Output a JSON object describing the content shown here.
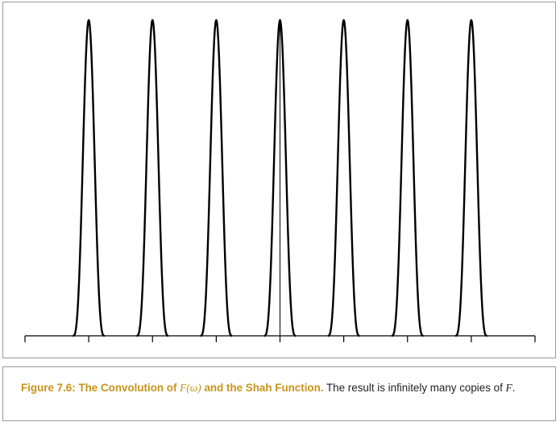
{
  "chart_data": {
    "type": "line",
    "title": "",
    "xlabel": "",
    "ylabel": "",
    "grid": false,
    "axis_ticks": [
      -4,
      -3,
      -2,
      -1,
      0,
      1,
      2,
      3,
      4
    ],
    "x_range": [
      -4,
      4
    ],
    "y_range": [
      0,
      1
    ],
    "series": [
      {
        "values_description_centers": [
          -3,
          -2,
          -1,
          0,
          1,
          2,
          3
        ],
        "peak": 1.0
      }
    ],
    "copy_centers": [
      -3,
      -2,
      -1,
      0,
      1,
      2,
      3
    ],
    "copy_peak": 1.0,
    "copy_halfwidth": 0.25,
    "impulse_at": 0
  },
  "caption": {
    "label": "Figure 7.6:",
    "title_pre": "The Convolution of",
    "title_math": "F(ω)",
    "title_post": "and the Shah Function.",
    "body_pre": "The result is infinitely many copies of",
    "body_math": "F",
    "body_post": "."
  },
  "colors": {
    "caption_label": "#c8941a",
    "curve": "#000000",
    "border": "#9a9a9a"
  }
}
